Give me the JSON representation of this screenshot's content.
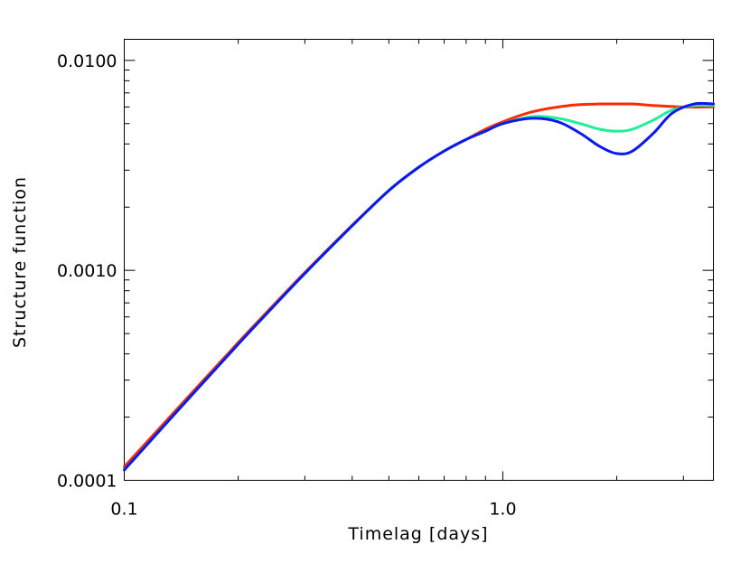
{
  "chart_data": {
    "type": "line",
    "title": "",
    "xlabel": "Timelag [days]",
    "ylabel": "Structure function",
    "xscale": "log",
    "yscale": "log",
    "xlim": [
      0.1,
      3.6
    ],
    "ylim": [
      0.0001,
      0.0126
    ],
    "grid": false,
    "legend": "none",
    "x_ticks": [
      {
        "value": 0.1,
        "label": "0.1"
      },
      {
        "value": 1.0,
        "label": "1.0"
      }
    ],
    "y_ticks": [
      {
        "value": 0.0001,
        "label": "0.0001"
      },
      {
        "value": 0.001,
        "label": "0.0010"
      },
      {
        "value": 0.01,
        "label": "0.0100"
      }
    ],
    "series": [
      {
        "color": "#ff2a00",
        "x": [
          0.1,
          0.15,
          0.2,
          0.25,
          0.3,
          0.4,
          0.5,
          0.6,
          0.7,
          0.8,
          0.9,
          1.0,
          1.2,
          1.5,
          1.8,
          2.0,
          2.2,
          2.5,
          3.0,
          3.6
        ],
        "y": [
          0.000116,
          0.000258,
          0.000453,
          0.000694,
          0.000977,
          0.00164,
          0.0024,
          0.0031,
          0.0037,
          0.0042,
          0.0047,
          0.0051,
          0.0057,
          0.0061,
          0.0062,
          0.0062,
          0.0062,
          0.0061,
          0.006,
          0.006
        ]
      },
      {
        "color": "#22ee99",
        "x": [
          0.1,
          0.15,
          0.2,
          0.25,
          0.3,
          0.4,
          0.5,
          0.6,
          0.7,
          0.8,
          0.9,
          1.0,
          1.2,
          1.4,
          1.6,
          1.8,
          2.0,
          2.2,
          2.5,
          2.8,
          3.2,
          3.6
        ],
        "y": [
          0.000112,
          0.000252,
          0.000445,
          0.000684,
          0.000967,
          0.00163,
          0.0024,
          0.0031,
          0.0037,
          0.0042,
          0.0046,
          0.005,
          0.0054,
          0.0053,
          0.005,
          0.0047,
          0.0046,
          0.0047,
          0.0052,
          0.0058,
          0.0061,
          0.0061
        ]
      },
      {
        "color": "#0a1aee",
        "x": [
          0.1,
          0.15,
          0.2,
          0.25,
          0.3,
          0.4,
          0.5,
          0.6,
          0.7,
          0.8,
          0.9,
          1.0,
          1.2,
          1.4,
          1.6,
          1.8,
          2.0,
          2.2,
          2.5,
          2.8,
          3.2,
          3.6
        ],
        "y": [
          0.000112,
          0.000252,
          0.000445,
          0.000684,
          0.000967,
          0.00163,
          0.0024,
          0.0031,
          0.0037,
          0.0042,
          0.0046,
          0.005,
          0.0053,
          0.0051,
          0.0045,
          0.0039,
          0.0036,
          0.0037,
          0.0045,
          0.0056,
          0.0062,
          0.0062
        ]
      }
    ]
  }
}
